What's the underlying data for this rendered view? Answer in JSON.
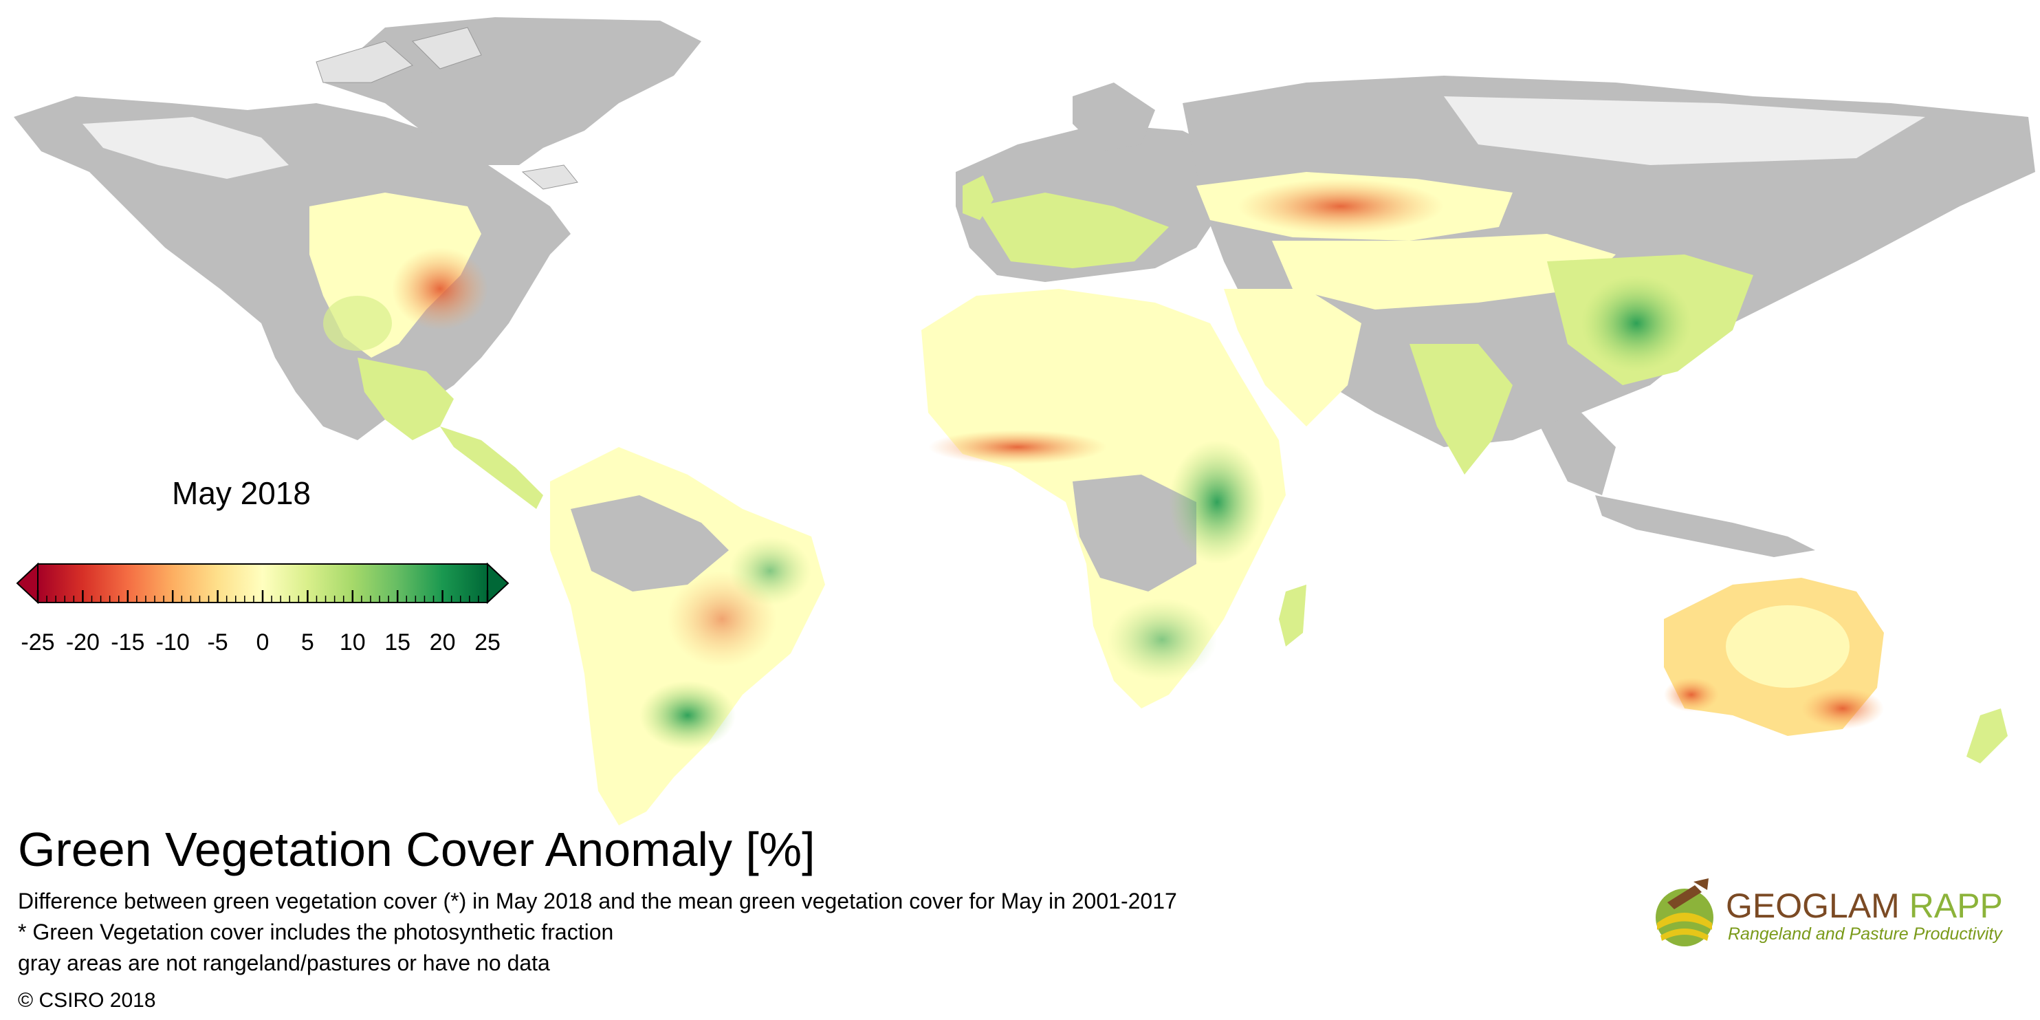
{
  "map": {
    "period": "May 2018",
    "title": "Green Vegetation Cover Anomaly [%]",
    "description_lines": [
      "Difference between green vegetation cover (*) in May 2018 and the mean green vegetation cover for May in 2001-2017",
      "* Green Vegetation cover includes the photosynthetic fraction",
      "gray areas are not rangeland/pastures or have no data"
    ],
    "copyright": "© CSIRO 2018",
    "colors": {
      "ocean": "#ffffff",
      "no_data_land": "#bdbdbd",
      "ice": "#e9e9e9",
      "border": "#333333"
    }
  },
  "legend": {
    "ticks": [
      "-25",
      "-20",
      "-15",
      "-10",
      "-5",
      "0",
      "5",
      "10",
      "15",
      "20",
      "25"
    ],
    "min": -25,
    "max": 25,
    "colors": [
      "#a50026",
      "#d73027",
      "#f46d43",
      "#fdae61",
      "#fee08b",
      "#ffffbf",
      "#d9ef8b",
      "#a6d96a",
      "#66bd63",
      "#1a9850",
      "#006837"
    ]
  },
  "logo": {
    "name_part1": "GEOGLAM",
    "name_part2": "RAPP",
    "subtitle": "Rangeland and Pasture Productivity",
    "colors": {
      "brown": "#7b4a24",
      "green": "#8cb33a",
      "yellow": "#e6c619"
    }
  }
}
